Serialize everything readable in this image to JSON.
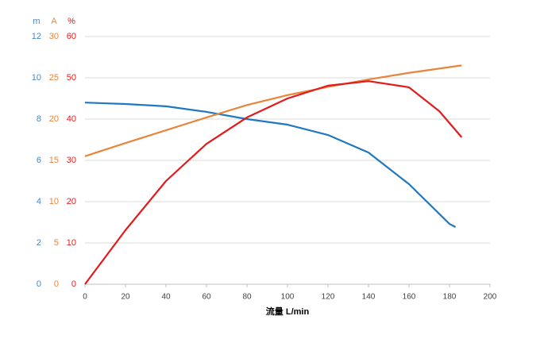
{
  "chart_data": {
    "type": "line",
    "x_label": "流量 L/min",
    "xlim": [
      0,
      200
    ],
    "xticks": [
      0,
      20,
      40,
      60,
      80,
      100,
      120,
      140,
      160,
      180,
      200
    ],
    "ylim": [
      0,
      12
    ],
    "yticks": [
      0,
      2,
      4,
      6,
      8,
      10,
      12
    ],
    "y_label": "m",
    "y_color": "#4a86c8",
    "y2lim": [
      0,
      30
    ],
    "y2ticks": [
      0,
      5,
      10,
      15,
      20,
      25,
      30
    ],
    "y2_label": "A",
    "y2_color": "#e8853a",
    "y3lim": [
      0,
      60
    ],
    "y3ticks": [
      0,
      10,
      20,
      30,
      40,
      50,
      60
    ],
    "y3_label": "%",
    "y3_color": "#e02020",
    "grid": true,
    "series": [
      {
        "color": "#1f78c1",
        "axis": "y",
        "x": [
          0,
          20,
          40,
          60,
          80,
          100,
          120,
          140,
          160,
          180,
          183
        ],
        "values": [
          8.8,
          8.73,
          8.62,
          8.35,
          8.0,
          7.73,
          7.23,
          6.38,
          4.85,
          2.92,
          2.77
        ]
      },
      {
        "color": "#e8853a",
        "axis": "y2",
        "x": [
          0,
          20,
          40,
          60,
          80,
          100,
          120,
          140,
          160,
          186
        ],
        "values": [
          15.5,
          17.1,
          18.65,
          20.2,
          21.7,
          22.9,
          23.9,
          24.8,
          25.6,
          26.5
        ]
      },
      {
        "color": "#e31a1c",
        "axis": "y3",
        "x": [
          0,
          20,
          40,
          60,
          80,
          100,
          120,
          140,
          160,
          175,
          186
        ],
        "values": [
          0,
          13.1,
          25,
          34,
          40.4,
          45,
          48.1,
          49.2,
          47.7,
          41.9,
          35.6
        ]
      }
    ]
  }
}
